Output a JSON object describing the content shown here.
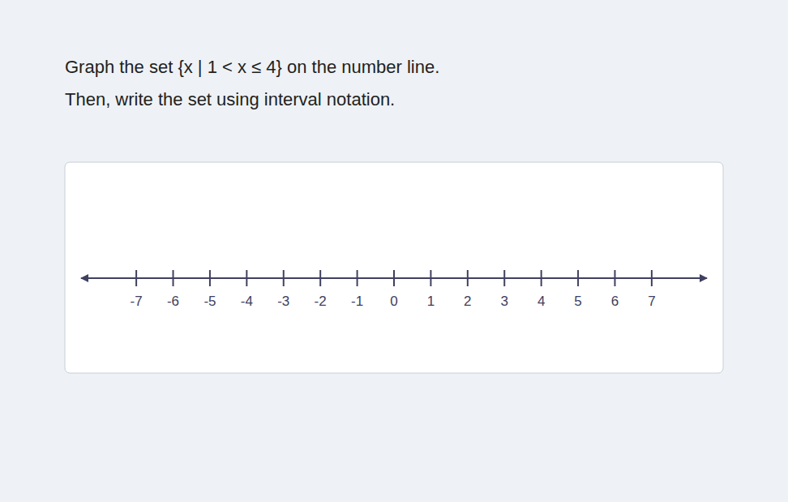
{
  "chart_data": {
    "type": "number_line",
    "title": "Graph the set {x | 1 < x ≤ 4} on the number line.",
    "subtitle": "Then, write the set using interval notation.",
    "xlim": [
      -8.5,
      8.5
    ],
    "xticks": [
      -7,
      -6,
      -5,
      -4,
      -3,
      -2,
      -1,
      0,
      1,
      2,
      3,
      4,
      5,
      6,
      7
    ],
    "color": "#404060"
  }
}
